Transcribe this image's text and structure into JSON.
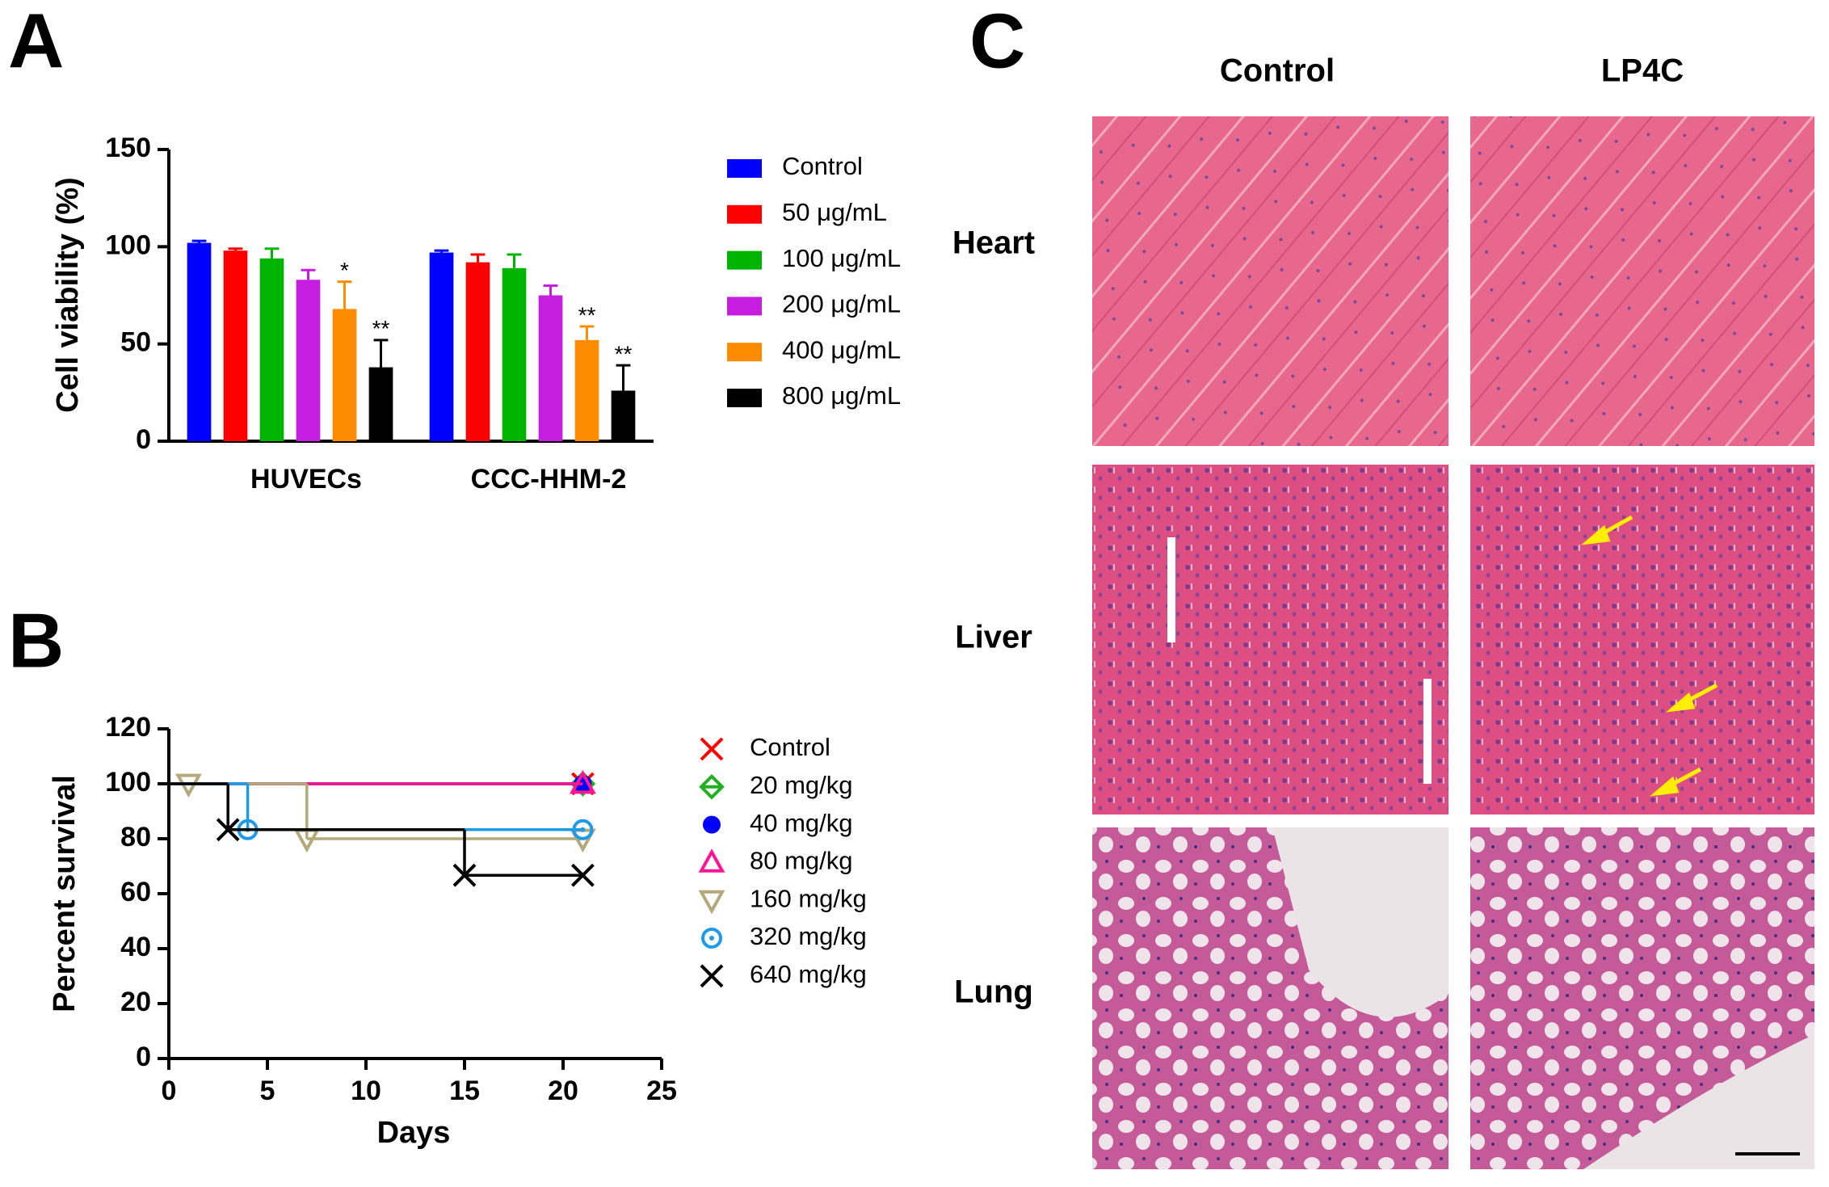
{
  "chart_data": [
    {
      "type": "bar",
      "panel": "A",
      "ylabel": "Cell viability (%)",
      "categories": [
        "HUVECs",
        "CCC-HHM-2"
      ],
      "ylim": [
        0,
        150
      ],
      "yticks": [
        0,
        50,
        100,
        150
      ],
      "series": [
        {
          "name": "Control",
          "color": "#0000ff",
          "values": [
            102,
            97
          ],
          "errors": [
            1,
            1
          ]
        },
        {
          "name": "50 μg/mL",
          "color": "#ff0000",
          "values": [
            98,
            92
          ],
          "errors": [
            1,
            4
          ]
        },
        {
          "name": "100 μg/mL",
          "color": "#00b400",
          "values": [
            94,
            89
          ],
          "errors": [
            5,
            7
          ]
        },
        {
          "name": "200 μg/mL",
          "color": "#c51ee0",
          "values": [
            83,
            75
          ],
          "errors": [
            5,
            5
          ]
        },
        {
          "name": "400 μg/mL",
          "color": "#ff8c00",
          "values": [
            68,
            52
          ],
          "errors": [
            14,
            7
          ],
          "annotations": [
            "*",
            "**"
          ]
        },
        {
          "name": "800 μg/mL",
          "color": "#000000",
          "values": [
            38,
            26
          ],
          "errors": [
            14,
            13
          ],
          "annotations": [
            "**",
            "**"
          ]
        }
      ]
    },
    {
      "type": "step",
      "panel": "B",
      "xlabel": "Days",
      "ylabel": "Percent survival",
      "xlim": [
        0,
        25
      ],
      "xticks": [
        0,
        5,
        10,
        15,
        20,
        25
      ],
      "ylim": [
        0,
        120
      ],
      "yticks": [
        0,
        20,
        40,
        60,
        80,
        100,
        120
      ],
      "series": [
        {
          "name": "Control",
          "color": "#ff0000",
          "marker": "x",
          "x": [
            0,
            21
          ],
          "values": [
            100,
            100
          ]
        },
        {
          "name": "20 mg/kg",
          "color": "#22b022",
          "marker": "diamond",
          "x": [
            0,
            21
          ],
          "values": [
            100,
            100
          ]
        },
        {
          "name": "40 mg/kg",
          "color": "#0000ff",
          "marker": "dot",
          "x": [
            0,
            21
          ],
          "values": [
            100,
            100
          ]
        },
        {
          "name": "80 mg/kg",
          "color": "#ff1493",
          "marker": "triangle",
          "x": [
            0,
            21
          ],
          "values": [
            100,
            100
          ]
        },
        {
          "name": "160 mg/kg",
          "color": "#b3a97a",
          "marker": "triangle-down",
          "x": [
            0,
            1,
            7,
            21
          ],
          "values": [
            100,
            100,
            80,
            80
          ]
        },
        {
          "name": "320 mg/kg",
          "color": "#1e9be8",
          "marker": "ring",
          "x": [
            0,
            4,
            21
          ],
          "values": [
            100,
            83.3,
            83.3
          ]
        },
        {
          "name": "640 mg/kg",
          "color": "#000000",
          "marker": "x",
          "x": [
            0,
            3,
            15,
            21
          ],
          "values": [
            100,
            83.3,
            66.7,
            66.7
          ]
        }
      ]
    }
  ],
  "histology": {
    "panel": "C",
    "columns": [
      "Control",
      "LP4C"
    ],
    "rows": [
      "Heart",
      "Liver",
      "Lung"
    ]
  }
}
